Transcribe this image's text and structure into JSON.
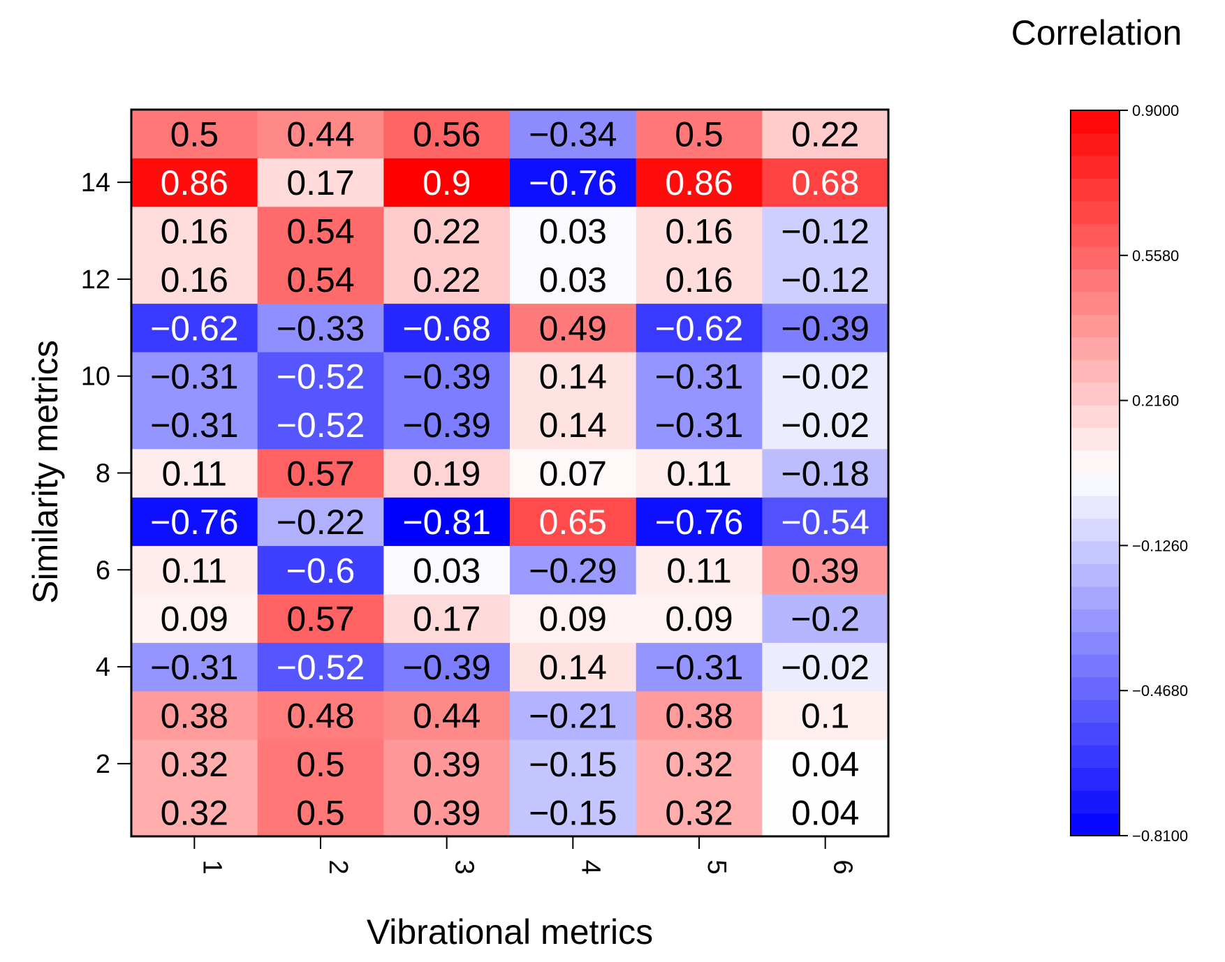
{
  "chart_data": {
    "type": "heatmap",
    "title": "",
    "xlabel": "Vibrational metrics",
    "ylabel": "Similarity metrics",
    "legend_title": "Correlation",
    "x_categories": [
      "1",
      "2",
      "3",
      "4",
      "5",
      "6"
    ],
    "y_categories": [
      "1",
      "2",
      "3",
      "4",
      "5",
      "6",
      "7",
      "8",
      "9",
      "10",
      "11",
      "12",
      "13",
      "14",
      "15"
    ],
    "y_tick_labels": [
      "2",
      "4",
      "6",
      "8",
      "10",
      "12",
      "14"
    ],
    "colorbar": {
      "min": -0.81,
      "max": 0.9,
      "tick_values": [
        0.9,
        0.558,
        0.216,
        -0.126,
        -0.468,
        -0.81
      ],
      "tick_labels": [
        "0.9000",
        "0.5580",
        "0.2160",
        "−0.1260",
        "−0.4680",
        "−0.8100"
      ],
      "low_color": "#0000ff",
      "mid_color": "#ffffff",
      "high_color": "#ff0000",
      "steps": 32
    },
    "rows": [
      {
        "y": "1",
        "values": [
          0.32,
          0.5,
          0.39,
          -0.15,
          0.32,
          0.04
        ],
        "labels": [
          "0.32",
          "0.5",
          "0.39",
          "−0.15",
          "0.32",
          "0.04"
        ]
      },
      {
        "y": "2",
        "values": [
          0.32,
          0.5,
          0.39,
          -0.15,
          0.32,
          0.04
        ],
        "labels": [
          "0.32",
          "0.5",
          "0.39",
          "−0.15",
          "0.32",
          "0.04"
        ]
      },
      {
        "y": "3",
        "values": [
          0.38,
          0.48,
          0.44,
          -0.21,
          0.38,
          0.1
        ],
        "labels": [
          "0.38",
          "0.48",
          "0.44",
          "−0.21",
          "0.38",
          "0.1"
        ]
      },
      {
        "y": "4",
        "values": [
          -0.31,
          -0.52,
          -0.39,
          0.14,
          -0.31,
          -0.02
        ],
        "labels": [
          "−0.31",
          "−0.52",
          "−0.39",
          "0.14",
          "−0.31",
          "−0.02"
        ]
      },
      {
        "y": "5",
        "values": [
          0.09,
          0.57,
          0.17,
          0.09,
          0.09,
          -0.2
        ],
        "labels": [
          "0.09",
          "0.57",
          "0.17",
          "0.09",
          "0.09",
          "−0.2"
        ]
      },
      {
        "y": "6",
        "values": [
          0.11,
          -0.6,
          0.03,
          -0.29,
          0.11,
          0.39
        ],
        "labels": [
          "0.11",
          "−0.6",
          "0.03",
          "−0.29",
          "0.11",
          "0.39"
        ]
      },
      {
        "y": "7",
        "values": [
          -0.76,
          -0.22,
          -0.81,
          0.65,
          -0.76,
          -0.54
        ],
        "labels": [
          "−0.76",
          "−0.22",
          "−0.81",
          "0.65",
          "−0.76",
          "−0.54"
        ]
      },
      {
        "y": "8",
        "values": [
          0.11,
          0.57,
          0.19,
          0.07,
          0.11,
          -0.18
        ],
        "labels": [
          "0.11",
          "0.57",
          "0.19",
          "0.07",
          "0.11",
          "−0.18"
        ]
      },
      {
        "y": "9",
        "values": [
          -0.31,
          -0.52,
          -0.39,
          0.14,
          -0.31,
          -0.02
        ],
        "labels": [
          "−0.31",
          "−0.52",
          "−0.39",
          "0.14",
          "−0.31",
          "−0.02"
        ]
      },
      {
        "y": "10",
        "values": [
          -0.31,
          -0.52,
          -0.39,
          0.14,
          -0.31,
          -0.02
        ],
        "labels": [
          "−0.31",
          "−0.52",
          "−0.39",
          "0.14",
          "−0.31",
          "−0.02"
        ]
      },
      {
        "y": "11",
        "values": [
          -0.62,
          -0.33,
          -0.68,
          0.49,
          -0.62,
          -0.39
        ],
        "labels": [
          "−0.62",
          "−0.33",
          "−0.68",
          "0.49",
          "−0.62",
          "−0.39"
        ]
      },
      {
        "y": "12",
        "values": [
          0.16,
          0.54,
          0.22,
          0.03,
          0.16,
          -0.12
        ],
        "labels": [
          "0.16",
          "0.54",
          "0.22",
          "0.03",
          "0.16",
          "−0.12"
        ]
      },
      {
        "y": "13",
        "values": [
          0.16,
          0.54,
          0.22,
          0.03,
          0.16,
          -0.12
        ],
        "labels": [
          "0.16",
          "0.54",
          "0.22",
          "0.03",
          "0.16",
          "−0.12"
        ]
      },
      {
        "y": "14",
        "values": [
          0.86,
          0.17,
          0.9,
          -0.76,
          0.86,
          0.68
        ],
        "labels": [
          "0.86",
          "0.17",
          "0.9",
          "−0.76",
          "0.86",
          "0.68"
        ]
      },
      {
        "y": "15",
        "values": [
          0.5,
          0.44,
          0.56,
          -0.34,
          0.5,
          0.22
        ],
        "labels": [
          "0.5",
          "0.44",
          "0.56",
          "−0.34",
          "0.5",
          "0.22"
        ]
      }
    ]
  }
}
